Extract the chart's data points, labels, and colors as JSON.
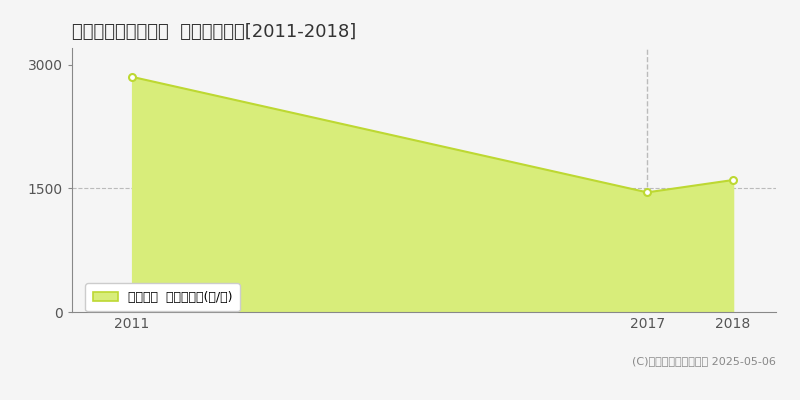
{
  "title": "新潟市西蒲区横曽根  農地価格推移[2011-2018]",
  "years": [
    2011,
    2017,
    2018
  ],
  "values": [
    2850,
    1450,
    1600
  ],
  "vline_x": 2017,
  "hline_y": 1500,
  "yticks": [
    0,
    1500,
    3000
  ],
  "xticks": [
    2011,
    2017,
    2018
  ],
  "ylim": [
    0,
    3200
  ],
  "xlim": [
    2010.3,
    2018.5
  ],
  "line_color": "#bdd832",
  "fill_color": "#d8ed7a",
  "marker_color": "#ffffff",
  "marker_edge_color": "#bdd832",
  "grid_color": "#bbbbbb",
  "vline_color": "#bbbbbb",
  "background_color": "#f5f5f5",
  "legend_label": "農地価格  平均坪単価(円/坪)",
  "copyright_text": "(C)土地価格ドットコム 2025-05-06",
  "title_fontsize": 13,
  "axis_fontsize": 10,
  "legend_fontsize": 9,
  "copyright_fontsize": 8
}
